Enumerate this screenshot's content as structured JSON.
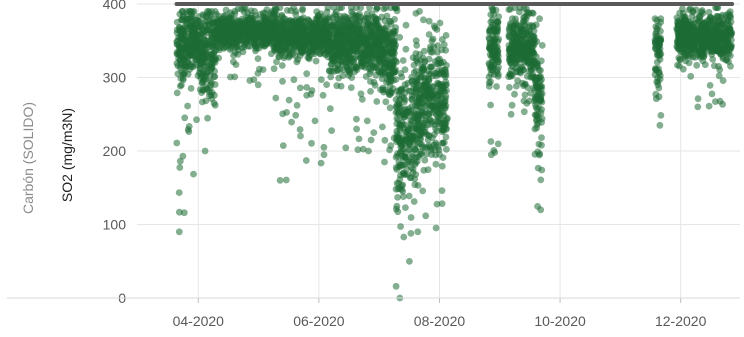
{
  "chart_data": {
    "type": "scatter",
    "facet_label": "Carbón (SOLIDO)",
    "ylabel": "SO2 (mg/m3N)",
    "xlabel": "",
    "ylim": [
      0,
      400
    ],
    "y_ticks": [
      0,
      100,
      200,
      300,
      400
    ],
    "xlim": [
      "2020-03-01",
      "2020-12-31"
    ],
    "x_ticks": [
      {
        "date": "2020-04-01",
        "label": "04-2020"
      },
      {
        "date": "2020-06-01",
        "label": "06-2020"
      },
      {
        "date": "2020-08-01",
        "label": "08-2020"
      },
      {
        "date": "2020-10-01",
        "label": "10-2020"
      },
      {
        "date": "2020-12-01",
        "label": "12-2020"
      }
    ],
    "grid": {
      "horizontal": true,
      "vertical": true
    },
    "reference_line": {
      "value": 400,
      "from": "2020-03-21",
      "to": "2020-12-27",
      "color": "#595959"
    },
    "point_color": "#1e6b35",
    "clusters": [
      {
        "from": "2020-03-21",
        "to": "2020-04-02",
        "center": 345,
        "spread": 38,
        "min": 90,
        "max": 390
      },
      {
        "from": "2020-04-02",
        "to": "2020-04-10",
        "center": 330,
        "spread": 50,
        "min": 200,
        "max": 390
      },
      {
        "from": "2020-04-10",
        "to": "2020-05-10",
        "center": 362,
        "spread": 18,
        "min": 290,
        "max": 395
      },
      {
        "from": "2020-05-10",
        "to": "2020-06-05",
        "center": 355,
        "spread": 22,
        "min": 160,
        "max": 395
      },
      {
        "from": "2020-06-05",
        "to": "2020-07-02",
        "center": 345,
        "spread": 35,
        "min": 200,
        "max": 395
      },
      {
        "from": "2020-07-02",
        "to": "2020-07-10",
        "center": 330,
        "spread": 45,
        "min": 185,
        "max": 395
      },
      {
        "from": "2020-07-10",
        "to": "2020-07-20",
        "center": 230,
        "spread": 75,
        "min": 0,
        "max": 395
      },
      {
        "from": "2020-07-20",
        "to": "2020-08-05",
        "center": 270,
        "spread": 70,
        "min": 90,
        "max": 390
      },
      {
        "from": "2020-08-26",
        "to": "2020-08-31",
        "center": 340,
        "spread": 38,
        "min": 195,
        "max": 395
      },
      {
        "from": "2020-09-05",
        "to": "2020-09-18",
        "center": 340,
        "spread": 35,
        "min": 250,
        "max": 395
      },
      {
        "from": "2020-09-18",
        "to": "2020-09-22",
        "center": 270,
        "spread": 65,
        "min": 120,
        "max": 380
      },
      {
        "from": "2020-11-18",
        "to": "2020-11-21",
        "center": 340,
        "spread": 40,
        "min": 235,
        "max": 380
      },
      {
        "from": "2020-11-29",
        "to": "2020-12-27",
        "center": 355,
        "spread": 25,
        "min": 260,
        "max": 395
      }
    ]
  }
}
